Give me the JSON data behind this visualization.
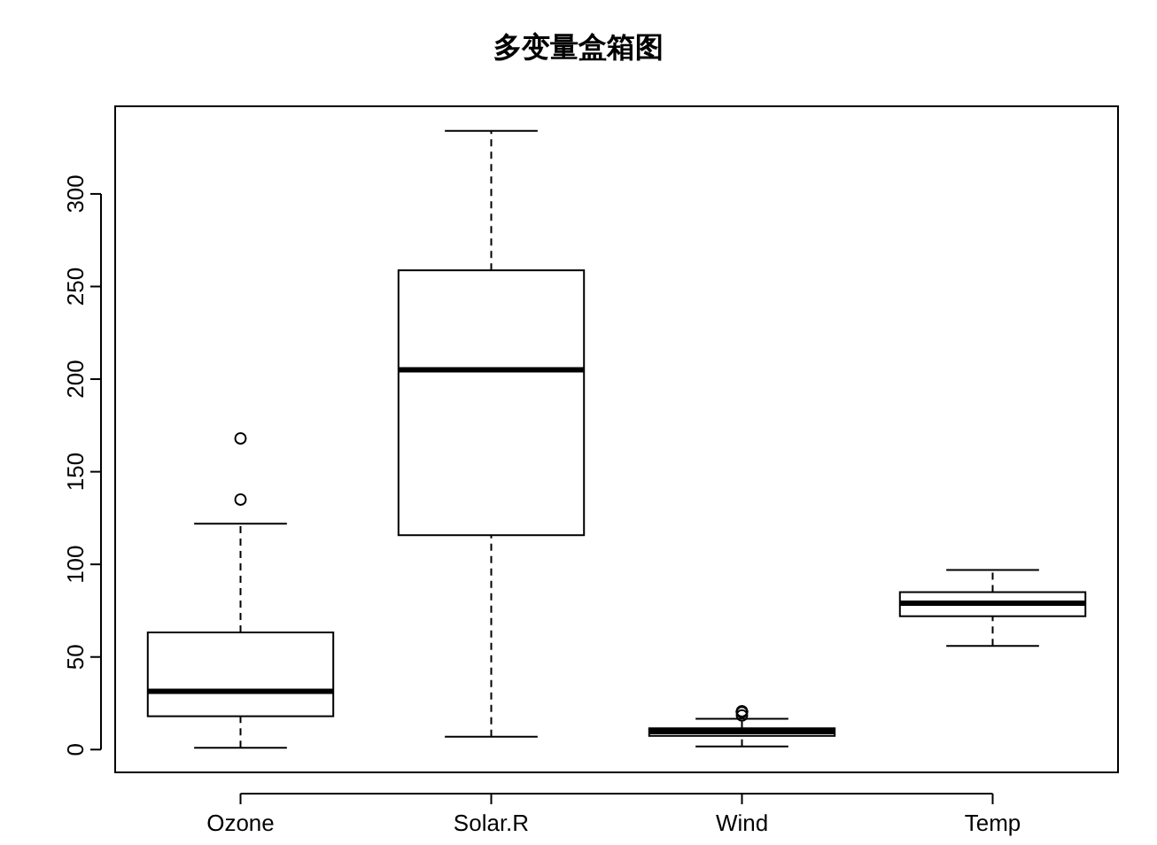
{
  "chart_data": {
    "type": "box",
    "title": "多变量盒箱图",
    "categories": [
      "Ozone",
      "Solar.R",
      "Wind",
      "Temp"
    ],
    "boxes": [
      {
        "low": 1,
        "q1": 18,
        "median": 31.5,
        "q3": 63.25,
        "high": 122,
        "outliers": [
          135,
          168
        ]
      },
      {
        "low": 7,
        "q1": 115.75,
        "median": 205,
        "q3": 258.75,
        "high": 334
      },
      {
        "low": 1.7,
        "q1": 7.4,
        "median": 9.7,
        "q3": 11.5,
        "high": 16.6,
        "outliers": [
          18.4,
          20.1,
          20.7
        ]
      },
      {
        "low": 56,
        "q1": 72,
        "median": 79,
        "q3": 85,
        "high": 97
      }
    ],
    "ylim": [
      -12.3,
      347.3
    ],
    "yticks": [
      0,
      50,
      100,
      150,
      200,
      250,
      300
    ]
  }
}
